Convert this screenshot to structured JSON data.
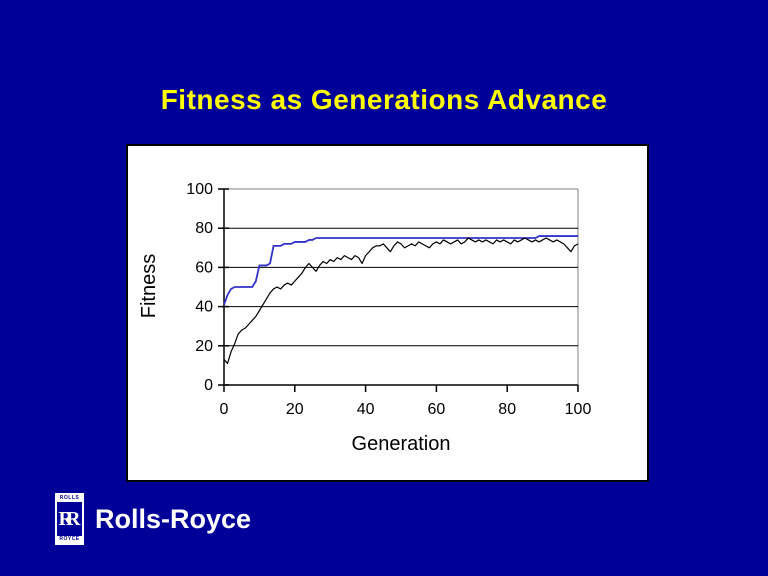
{
  "slide": {
    "background_color": "#000099",
    "title": "Fitness as Generations Advance",
    "title_color": "#FFFF00"
  },
  "logo": {
    "brand": "Rolls-Royce",
    "badge_top": "ROLLS",
    "badge_monogram": "RR",
    "badge_bottom": "ROYCE",
    "text_color": "#FFFFFF"
  },
  "chart_data": {
    "type": "line",
    "title": "",
    "xlabel": "Generation",
    "ylabel": "Fitness",
    "xlim": [
      0,
      100
    ],
    "ylim": [
      0,
      100
    ],
    "xticks": [
      0,
      20,
      40,
      60,
      80,
      100
    ],
    "yticks": [
      0,
      20,
      40,
      60,
      80,
      100
    ],
    "grid": "horizontal-major",
    "legend": "none",
    "background": "#FFFFFF",
    "plot_border_color": "#808080",
    "x_start": 0,
    "x_step": 1,
    "series": [
      {
        "name": "blue-line",
        "color": "#3333CC",
        "values": [
          41,
          46,
          49,
          50,
          50,
          50,
          50,
          50,
          50,
          53,
          61,
          61,
          61,
          62,
          71,
          71,
          71,
          72,
          72,
          72,
          73,
          73,
          73,
          73,
          74,
          74,
          75,
          75,
          75,
          75,
          75,
          75,
          75,
          75,
          75,
          75,
          75,
          75,
          75,
          75,
          75,
          75,
          75,
          75,
          75,
          75,
          75,
          75,
          75,
          75,
          75,
          75,
          75,
          75,
          75,
          75,
          75,
          75,
          75,
          75,
          75,
          75,
          75,
          75,
          75,
          75,
          75,
          75,
          75,
          75,
          75,
          75,
          75,
          75,
          75,
          75,
          75,
          75,
          75,
          75,
          75,
          75,
          75,
          75,
          75,
          75,
          75,
          75,
          75,
          76,
          76,
          76,
          76,
          76,
          76,
          76,
          76,
          76,
          76,
          76,
          76
        ]
      },
      {
        "name": "black-line",
        "color": "#000000",
        "values": [
          13,
          11,
          17,
          21,
          26,
          28,
          29,
          31,
          33,
          35,
          38,
          41,
          44,
          47,
          49,
          50,
          49,
          51,
          52,
          51,
          53,
          55,
          57,
          60,
          62,
          60,
          58,
          61,
          63,
          62,
          64,
          63,
          65,
          64,
          66,
          65,
          64,
          66,
          65,
          62,
          66,
          68,
          70,
          71,
          71,
          72,
          70,
          68,
          71,
          73,
          72,
          70,
          71,
          72,
          71,
          73,
          72,
          71,
          70,
          72,
          73,
          72,
          74,
          73,
          72,
          73,
          74,
          72,
          73,
          75,
          74,
          73,
          74,
          73,
          74,
          73,
          72,
          74,
          73,
          74,
          73,
          72,
          74,
          73,
          74,
          75,
          74,
          73,
          74,
          73,
          74,
          75,
          74,
          73,
          74,
          73,
          72,
          70,
          68,
          71,
          72
        ]
      }
    ]
  }
}
